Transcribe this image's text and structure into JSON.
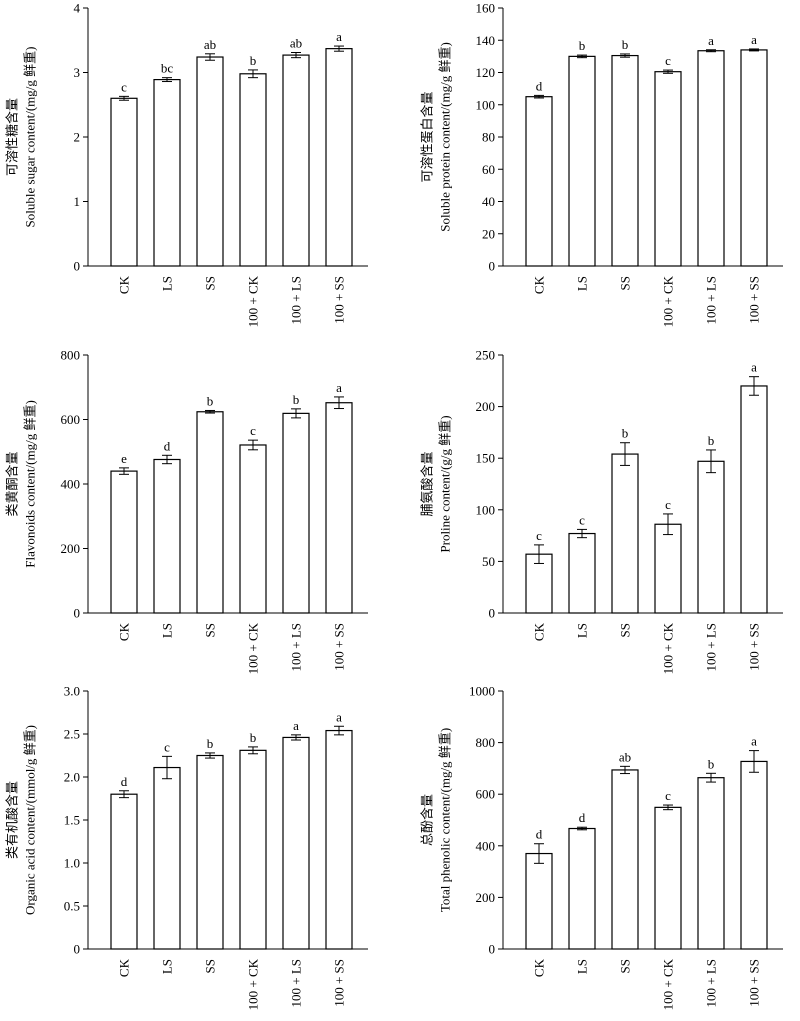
{
  "chart_data": [
    {
      "type": "bar",
      "categories": [
        "CK",
        "LS",
        "SS",
        "100 + CK",
        "100 + LS",
        "100 + SS"
      ],
      "values": [
        2.6,
        2.89,
        3.24,
        2.98,
        3.27,
        3.37
      ],
      "errors": [
        0.03,
        0.03,
        0.05,
        0.06,
        0.04,
        0.04
      ],
      "significance": [
        "c",
        "bc",
        "ab",
        "b",
        "ab",
        "a"
      ],
      "ylabel_zh": "可溶性糖含量",
      "ylabel_en": "Soluble sugar content/(mg/g 鲜重)",
      "ylim": [
        0,
        4
      ],
      "yticks": [
        0,
        1,
        2,
        3,
        4
      ],
      "ytick_labels": [
        "0",
        "1",
        "2",
        "3",
        "4"
      ]
    },
    {
      "type": "bar",
      "categories": [
        "CK",
        "LS",
        "SS",
        "100 + CK",
        "100 + LS",
        "100 + SS"
      ],
      "values": [
        105,
        130,
        130.5,
        120.5,
        133.5,
        134
      ],
      "errors": [
        0.8,
        0.8,
        1.0,
        1.0,
        0.6,
        0.6
      ],
      "significance": [
        "d",
        "b",
        "b",
        "c",
        "a",
        "a"
      ],
      "ylabel_zh": "可溶性蛋白含量",
      "ylabel_en": "Soluble protein content/(mg/g 鲜重)",
      "ylim": [
        0,
        160
      ],
      "yticks": [
        0,
        20,
        40,
        60,
        80,
        100,
        120,
        140,
        160
      ],
      "ytick_labels": [
        "0",
        "20",
        "40",
        "60",
        "80",
        "100",
        "120",
        "140",
        "160"
      ]
    },
    {
      "type": "bar",
      "categories": [
        "CK",
        "LS",
        "SS",
        "100 + CK",
        "100 + LS",
        "100 + SS"
      ],
      "values": [
        440,
        476,
        624,
        521,
        619,
        652
      ],
      "errors": [
        10,
        13,
        4,
        15,
        14,
        18
      ],
      "significance": [
        "e",
        "d",
        "b",
        "c",
        "b",
        "a"
      ],
      "ylabel_zh": "类黄酮含量",
      "ylabel_en": "Flavonoids content/(mg/g 鲜重)",
      "ylim": [
        0,
        800
      ],
      "yticks": [
        0,
        200,
        400,
        600,
        800
      ],
      "ytick_labels": [
        "0",
        "200",
        "400",
        "600",
        "800"
      ]
    },
    {
      "type": "bar",
      "categories": [
        "CK",
        "LS",
        "SS",
        "100 + CK",
        "100 + LS",
        "100 + SS"
      ],
      "values": [
        57,
        77,
        154,
        86,
        147,
        220
      ],
      "errors": [
        9,
        4,
        11,
        10,
        11,
        9
      ],
      "significance": [
        "c",
        "c",
        "b",
        "c",
        "b",
        "a"
      ],
      "ylabel_zh": "脯氨酸含量",
      "ylabel_en": "Proline content/(g/g 鲜重)",
      "ylim": [
        0,
        250
      ],
      "yticks": [
        0,
        50,
        100,
        150,
        200,
        250
      ],
      "ytick_labels": [
        "0",
        "50",
        "100",
        "150",
        "200",
        "250"
      ]
    },
    {
      "type": "bar",
      "categories": [
        "CK",
        "LS",
        "SS",
        "100 + CK",
        "100 + LS",
        "100 + SS"
      ],
      "values": [
        1.8,
        2.11,
        2.25,
        2.31,
        2.46,
        2.54
      ],
      "errors": [
        0.04,
        0.13,
        0.03,
        0.04,
        0.03,
        0.05
      ],
      "significance": [
        "d",
        "c",
        "b",
        "b",
        "a",
        "a"
      ],
      "ylabel_zh": "类有机酸含量",
      "ylabel_en": "Organic acid content/(mmol/g 鲜重)",
      "ylim": [
        0,
        3
      ],
      "yticks": [
        0,
        0.5,
        1,
        1.5,
        2,
        2.5,
        3
      ],
      "ytick_labels": [
        "0",
        "0.5",
        "1.0",
        "1.5",
        "2.0",
        "2.5",
        "3.0"
      ]
    },
    {
      "type": "bar",
      "categories": [
        "CK",
        "LS",
        "SS",
        "100 + CK",
        "100 + LS",
        "100 + SS"
      ],
      "values": [
        370,
        467,
        694,
        549,
        664,
        727
      ],
      "errors": [
        38,
        5,
        14,
        9,
        17,
        42
      ],
      "significance": [
        "d",
        "d",
        "ab",
        "c",
        "b",
        "a"
      ],
      "ylabel_zh": "总酚含量",
      "ylabel_en": "Total phenolic content/(mg/g 鲜重)",
      "ylim": [
        0,
        1000
      ],
      "yticks": [
        0,
        200,
        400,
        600,
        800,
        1000
      ],
      "ytick_labels": [
        "0",
        "200",
        "400",
        "600",
        "800",
        "1000"
      ]
    }
  ]
}
